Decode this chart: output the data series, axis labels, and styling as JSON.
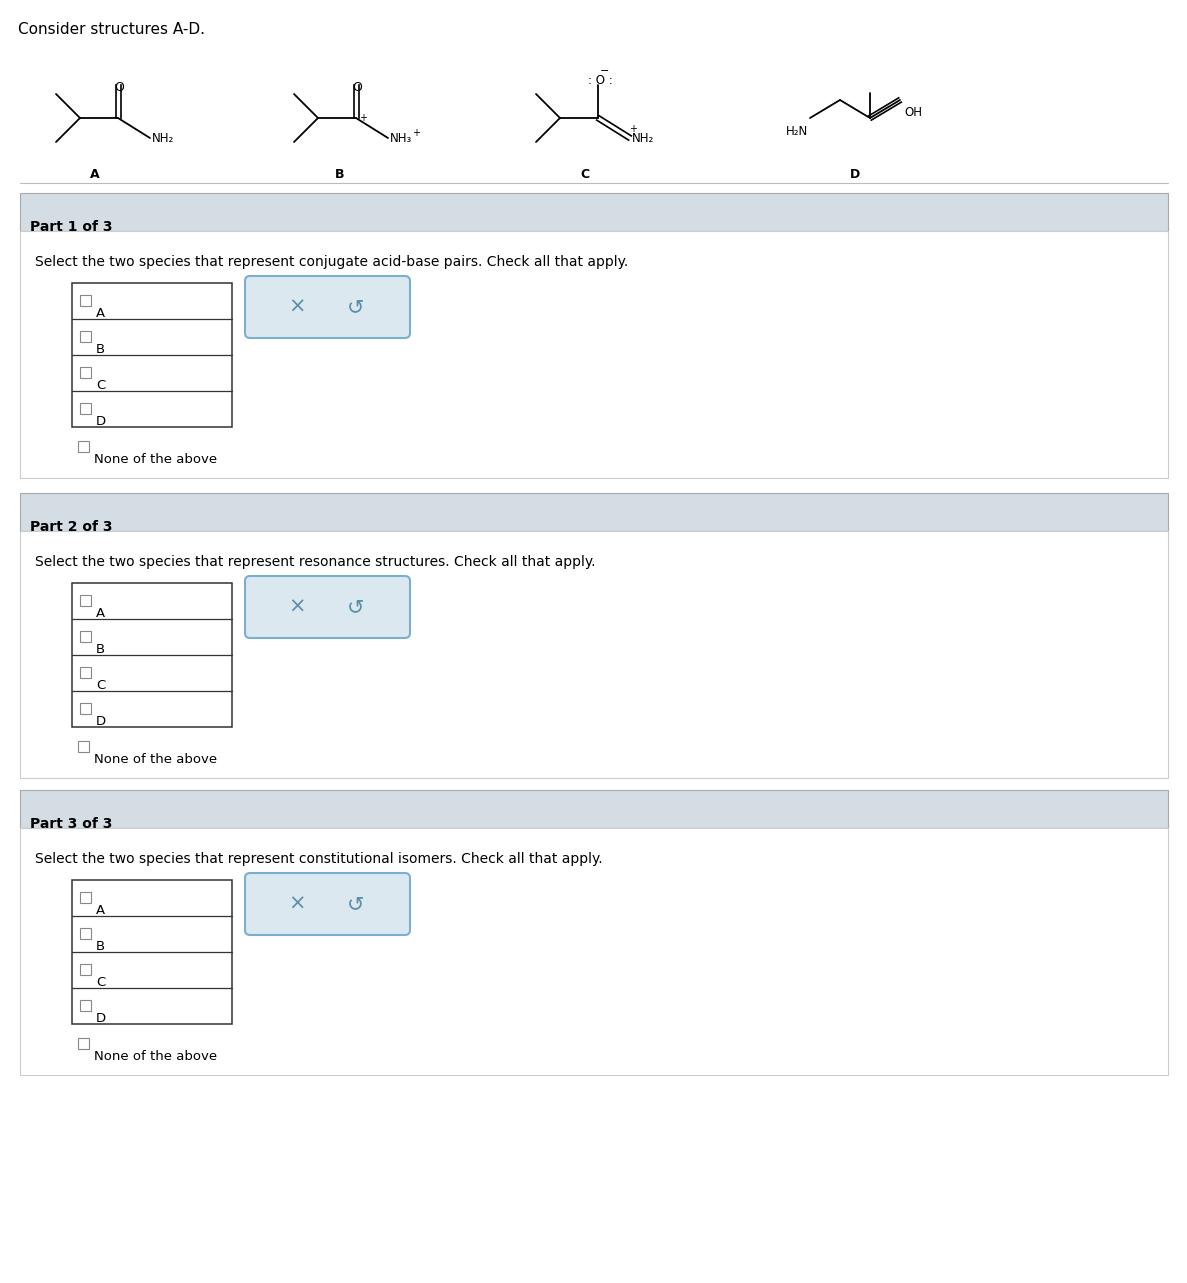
{
  "title": "Consider structures A-D.",
  "bg_color": "#ffffff",
  "panel_bg": "#d4dce4",
  "panel_border": "#cccccc",
  "part_headers": [
    "Part 1 of 3",
    "Part 2 of 3",
    "Part 3 of 3"
  ],
  "part_questions": [
    "Select the two species that represent conjugate acid-base pairs. Check all that apply.",
    "Select the two species that represent resonance structures. Check all that apply.",
    "Select the two species that represent constitutional isomers. Check all that apply."
  ],
  "choices": [
    "A",
    "B",
    "C",
    "D",
    "None of the above"
  ],
  "font_size_title": 11,
  "font_size_part": 10,
  "font_size_question": 10,
  "font_size_choice": 9.5
}
